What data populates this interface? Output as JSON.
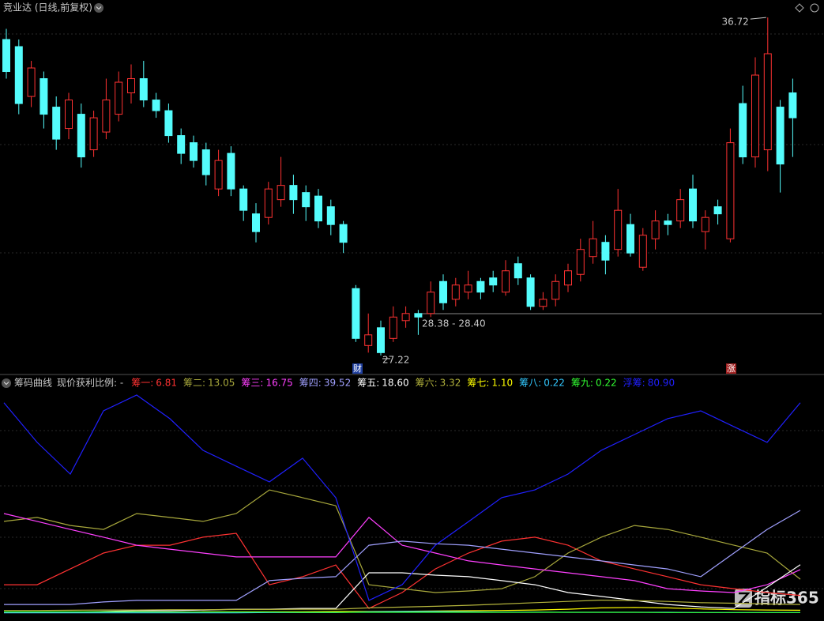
{
  "chart_data": [
    {
      "type": "candlestick",
      "title": "竞业达 (日线,前复权)",
      "up_color": "#ff3232",
      "down_color": "#54fcfc",
      "ylim": [
        26.73,
        37.21
      ],
      "ohlc": [
        [
          36.1,
          36.4,
          35.0,
          35.2
        ],
        [
          35.9,
          36.1,
          34.0,
          34.3
        ],
        [
          34.5,
          35.5,
          34.2,
          35.3
        ],
        [
          35.0,
          35.2,
          33.6,
          34.0
        ],
        [
          34.2,
          34.5,
          33.0,
          33.3
        ],
        [
          33.6,
          34.6,
          33.3,
          34.4
        ],
        [
          34.0,
          34.3,
          32.5,
          32.8
        ],
        [
          33.0,
          34.1,
          32.8,
          33.9
        ],
        [
          33.5,
          35.0,
          33.3,
          34.4
        ],
        [
          34.0,
          35.2,
          33.8,
          34.9
        ],
        [
          34.6,
          35.4,
          34.3,
          35.0
        ],
        [
          35.0,
          35.5,
          34.2,
          34.4
        ],
        [
          34.4,
          34.6,
          33.9,
          34.1
        ],
        [
          34.1,
          34.3,
          33.2,
          33.4
        ],
        [
          33.4,
          33.6,
          32.6,
          32.9
        ],
        [
          33.2,
          33.4,
          32.5,
          32.7
        ],
        [
          33.0,
          33.2,
          32.0,
          32.3
        ],
        [
          31.9,
          33.0,
          31.7,
          32.7
        ],
        [
          32.9,
          33.1,
          31.7,
          31.9
        ],
        [
          31.9,
          32.0,
          31.0,
          31.3
        ],
        [
          31.2,
          31.5,
          30.4,
          30.7
        ],
        [
          31.1,
          32.1,
          30.9,
          31.9
        ],
        [
          31.6,
          32.8,
          31.4,
          32.0
        ],
        [
          32.0,
          32.3,
          31.2,
          31.6
        ],
        [
          31.8,
          32.0,
          31.0,
          31.4
        ],
        [
          31.7,
          31.9,
          30.8,
          31.0
        ],
        [
          31.4,
          31.6,
          30.6,
          30.9
        ],
        [
          30.9,
          31.0,
          30.1,
          30.4
        ],
        [
          29.1,
          29.2,
          27.6,
          27.7
        ],
        [
          27.5,
          28.4,
          27.3,
          27.8
        ],
        [
          28.0,
          28.2,
          27.22,
          27.3
        ],
        [
          27.7,
          28.6,
          27.6,
          28.3
        ],
        [
          28.2,
          28.6,
          28.0,
          28.4
        ],
        [
          28.4,
          28.5,
          27.8,
          28.3
        ],
        [
          28.4,
          29.3,
          28.3,
          29.0
        ],
        [
          29.3,
          29.5,
          28.5,
          28.7
        ],
        [
          28.8,
          29.4,
          28.6,
          29.2
        ],
        [
          29.0,
          29.6,
          28.8,
          29.2
        ],
        [
          29.3,
          29.4,
          28.8,
          29.0
        ],
        [
          29.4,
          29.6,
          29.0,
          29.2
        ],
        [
          29.0,
          29.9,
          28.9,
          29.6
        ],
        [
          29.8,
          30.0,
          29.2,
          29.4
        ],
        [
          29.4,
          29.5,
          28.5,
          28.6
        ],
        [
          28.6,
          29.0,
          28.5,
          28.8
        ],
        [
          28.8,
          29.5,
          28.6,
          29.3
        ],
        [
          29.2,
          29.8,
          29.0,
          29.6
        ],
        [
          29.5,
          30.5,
          29.3,
          30.2
        ],
        [
          30.0,
          31.0,
          29.8,
          30.5
        ],
        [
          30.4,
          30.6,
          29.5,
          29.9
        ],
        [
          30.2,
          31.9,
          30.0,
          31.3
        ],
        [
          30.9,
          31.2,
          30.0,
          30.1
        ],
        [
          29.7,
          30.8,
          29.6,
          30.6
        ],
        [
          30.5,
          31.3,
          30.2,
          31.0
        ],
        [
          31.0,
          31.2,
          30.6,
          30.9
        ],
        [
          31.0,
          31.9,
          30.8,
          31.6
        ],
        [
          31.9,
          32.3,
          30.8,
          31.0
        ],
        [
          30.7,
          31.3,
          30.2,
          31.1
        ],
        [
          31.4,
          31.6,
          30.9,
          31.2
        ],
        [
          30.5,
          33.6,
          30.4,
          33.2
        ],
        [
          34.3,
          34.8,
          32.6,
          32.8
        ],
        [
          32.8,
          35.6,
          32.5,
          35.1
        ],
        [
          33.0,
          36.72,
          32.4,
          35.7
        ],
        [
          34.2,
          34.4,
          31.8,
          32.6
        ],
        [
          34.6,
          35.0,
          32.8,
          33.9
        ]
      ],
      "high_label": 36.72,
      "low_label": 27.22,
      "range_label": "28.38 - 28.40",
      "markers": [
        "财",
        "涨"
      ]
    },
    {
      "type": "line",
      "title": "筹码曲线",
      "subtitle": "现价获利比例: -",
      "ylim": [
        0,
        84.5
      ],
      "series": [
        {
          "name": "筹一:",
          "color": "#ff3232",
          "values": [
            10.9,
            10.9,
            17.0,
            23.1,
            26.1,
            26.1,
            29.2,
            30.7,
            10.9,
            14.0,
            18.5,
            1.8,
            7.9,
            17.0,
            23.1,
            27.7,
            29.2,
            26.1,
            20.1,
            17.0,
            14.0,
            10.9,
            9.4,
            7.9,
            6.81
          ]
        },
        {
          "name": "筹二:",
          "color": "#a8a83c",
          "values": [
            35.3,
            36.8,
            33.7,
            32.2,
            38.3,
            36.8,
            35.3,
            38.3,
            47.4,
            44.4,
            41.3,
            10.9,
            9.4,
            7.9,
            8.5,
            9.4,
            14.0,
            23.1,
            29.2,
            33.7,
            32.2,
            29.2,
            26.1,
            23.1,
            13.05
          ]
        },
        {
          "name": "筹三:",
          "color": "#ff40ff",
          "values": [
            38.3,
            35.3,
            32.2,
            29.2,
            26.1,
            24.6,
            23.1,
            21.6,
            21.6,
            21.6,
            21.6,
            36.8,
            26.1,
            23.1,
            20.1,
            18.5,
            17.0,
            15.5,
            14.0,
            12.5,
            9.4,
            8.5,
            7.9,
            10.9,
            16.75
          ]
        },
        {
          "name": "筹四:",
          "color": "#a0a0ff",
          "values": [
            3.3,
            3.3,
            3.3,
            4.3,
            4.9,
            4.9,
            4.9,
            4.9,
            12.5,
            13.4,
            14.0,
            26.1,
            27.7,
            26.7,
            26.1,
            24.6,
            23.1,
            21.6,
            20.1,
            18.5,
            17.0,
            14.0,
            23.1,
            32.2,
            39.52
          ]
        },
        {
          "name": "筹五:",
          "color": "#ffffff",
          "values": [
            0.3,
            0.3,
            0.3,
            0.6,
            0.9,
            0.9,
            1.2,
            1.5,
            1.5,
            1.8,
            1.8,
            15.5,
            15.5,
            14.6,
            14.0,
            12.5,
            10.9,
            7.9,
            6.4,
            4.9,
            3.3,
            2.4,
            1.8,
            10.0,
            18.6
          ],
          "value_labels": [
            null,
            null,
            null,
            null,
            null,
            null,
            null,
            null,
            null,
            null,
            null,
            null,
            null,
            null,
            null,
            null,
            null,
            null,
            null,
            null,
            null,
            null,
            null,
            null,
            "18.60"
          ]
        },
        {
          "name": "筹六:",
          "color": "#b4b43c",
          "values": [
            1.0,
            1.0,
            1.1,
            1.2,
            1.2,
            1.3,
            1.3,
            1.4,
            1.4,
            1.5,
            1.5,
            2.0,
            2.3,
            2.6,
            3.0,
            3.5,
            4.0,
            4.5,
            5.0,
            4.8,
            4.5,
            4.0,
            3.8,
            3.5,
            3.32
          ]
        },
        {
          "name": "筹七:",
          "color": "#ffff00",
          "values": [
            0.3,
            0.3,
            0.3,
            0.4,
            0.4,
            0.4,
            0.5,
            0.5,
            0.5,
            0.5,
            0.6,
            0.6,
            0.7,
            0.8,
            0.9,
            1.0,
            1.2,
            1.5,
            2.0,
            2.2,
            2.0,
            1.6,
            1.3,
            1.2,
            1.1
          ],
          "value_labels": [
            null,
            null,
            null,
            null,
            null,
            null,
            null,
            null,
            null,
            null,
            null,
            null,
            null,
            null,
            null,
            null,
            null,
            null,
            null,
            null,
            null,
            null,
            null,
            null,
            "1.10"
          ]
        },
        {
          "name": "筹八:",
          "color": "#32c8ff",
          "values": [
            0.1,
            0.1,
            0.1,
            0.1,
            0.1,
            0.1,
            0.1,
            0.1,
            0.2,
            0.2,
            0.2,
            0.5,
            0.6,
            0.6,
            0.5,
            0.4,
            0.4,
            0.3,
            0.3,
            0.3,
            0.3,
            0.2,
            0.2,
            0.2,
            0.22
          ]
        },
        {
          "name": "筹九:",
          "color": "#32ff32",
          "values": [
            0.5,
            0.5,
            0.5,
            0.5,
            0.5,
            0.4,
            0.4,
            0.4,
            0.4,
            0.3,
            0.3,
            0.3,
            0.3,
            0.3,
            0.3,
            0.3,
            0.3,
            0.3,
            0.3,
            0.3,
            0.2,
            0.2,
            0.2,
            0.2,
            0.22
          ]
        },
        {
          "name": "浮筹:",
          "color": "#2020ff",
          "values": [
            80.9,
            65.7,
            53.5,
            77.8,
            83.9,
            74.8,
            62.6,
            56.5,
            50.5,
            59.6,
            44.4,
            4.9,
            10.9,
            26.1,
            35.2,
            44.4,
            47.4,
            53.5,
            62.6,
            68.7,
            74.8,
            77.8,
            71.7,
            65.7,
            80.9
          ],
          "value_labels": [
            null,
            null,
            null,
            null,
            null,
            null,
            null,
            null,
            null,
            null,
            null,
            null,
            null,
            null,
            null,
            null,
            null,
            null,
            null,
            null,
            null,
            null,
            null,
            null,
            "80.90"
          ]
        }
      ]
    }
  ],
  "watermark": "指标365"
}
